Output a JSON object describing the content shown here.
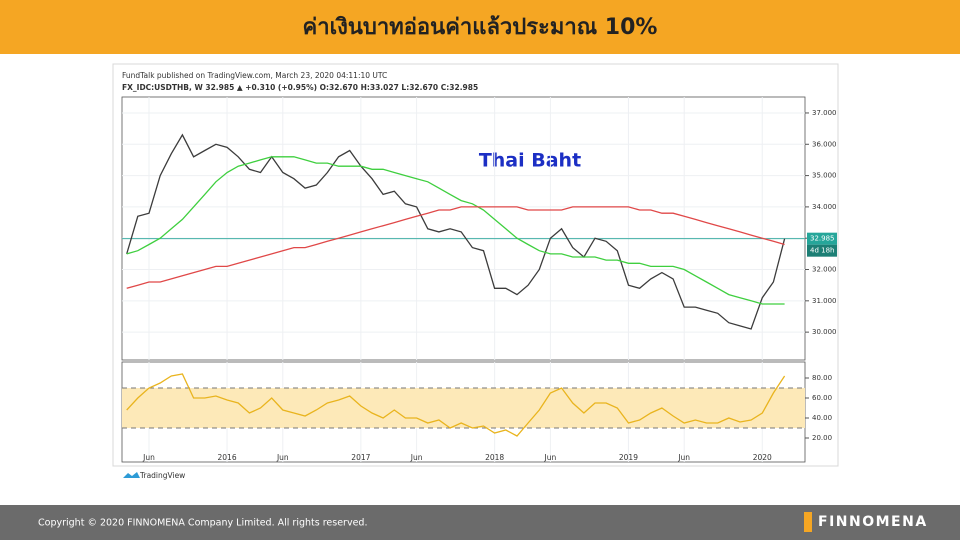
{
  "slide": {
    "title": "ค่าเงินบาทอ่อนค่าแล้วประมาณ 10%",
    "footer": "Copyright © 2020 FINNOMENA Company Limited. All rights reserved.",
    "logo": "FINNOMENA"
  },
  "chart_data": [
    {
      "type": "line",
      "publisher_line": "FundTalk published on TradingView.com, March 23, 2020 04:11:10 UTC",
      "symbol_line": "FX_IDC:USDTHB, W 32.985 ▲ +0.310 (+0.95%) O:32.670 H:33.027 L:32.670 C:32.985",
      "annotation": "Thai Baht",
      "watermark": "TradingView",
      "ylim": [
        29.11,
        37.51
      ],
      "yticks": [
        {
          "value": 30,
          "label": "30.000"
        },
        {
          "value": 31,
          "label": "31.000"
        },
        {
          "value": 32,
          "label": "32.000"
        },
        {
          "value": 33,
          "label": "33.000"
        },
        {
          "value": 34,
          "label": "34.000"
        },
        {
          "value": 35,
          "label": "35.000"
        },
        {
          "value": 36,
          "label": "36.000"
        },
        {
          "value": 37,
          "label": "37.000"
        }
      ],
      "grid": true,
      "price_line": 32.985,
      "price_line_color": "#26a69a",
      "countdown": "4d 18h",
      "series": [
        {
          "color": "#3c3c3c",
          "values": [
            32.5,
            33.7,
            33.8,
            35.0,
            35.7,
            36.3,
            35.6,
            35.8,
            36.0,
            35.9,
            35.6,
            35.2,
            35.1,
            35.6,
            35.1,
            34.9,
            34.6,
            34.7,
            35.1,
            35.6,
            35.8,
            35.3,
            34.9,
            34.4,
            34.5,
            34.1,
            34.0,
            33.3,
            33.2,
            33.3,
            33.2,
            32.7,
            32.6,
            31.4,
            31.4,
            31.2,
            31.5,
            32.0,
            33.0,
            33.3,
            32.7,
            32.4,
            33.0,
            32.9,
            32.6,
            31.5,
            31.4,
            31.7,
            31.9,
            31.7,
            30.8,
            30.8,
            30.7,
            30.6,
            30.3,
            30.2,
            30.1,
            31.1,
            31.6,
            32.985
          ]
        },
        {
          "color": "#3fcf3f",
          "values": [
            32.5,
            32.6,
            32.8,
            33.0,
            33.3,
            33.6,
            34.0,
            34.4,
            34.8,
            35.1,
            35.3,
            35.4,
            35.5,
            35.6,
            35.6,
            35.6,
            35.5,
            35.4,
            35.4,
            35.3,
            35.3,
            35.3,
            35.2,
            35.2,
            35.1,
            35.0,
            34.9,
            34.8,
            34.6,
            34.4,
            34.2,
            34.1,
            33.9,
            33.6,
            33.3,
            33.0,
            32.8,
            32.6,
            32.5,
            32.5,
            32.4,
            32.4,
            32.4,
            32.3,
            32.3,
            32.2,
            32.2,
            32.1,
            32.1,
            32.1,
            32.0,
            31.8,
            31.6,
            31.4,
            31.2,
            31.1,
            31.0,
            30.9,
            30.9,
            30.9
          ]
        },
        {
          "color": "#e04848",
          "values": [
            31.4,
            31.5,
            31.6,
            31.6,
            31.7,
            31.8,
            31.9,
            32.0,
            32.1,
            32.1,
            32.2,
            32.3,
            32.4,
            32.5,
            32.6,
            32.7,
            32.7,
            32.8,
            32.9,
            33.0,
            33.1,
            33.2,
            33.3,
            33.4,
            33.5,
            33.6,
            33.7,
            33.8,
            33.9,
            33.9,
            34.0,
            34.0,
            34.0,
            34.0,
            34.0,
            34.0,
            33.9,
            33.9,
            33.9,
            33.9,
            34.0,
            34.0,
            34.0,
            34.0,
            34.0,
            34.0,
            33.9,
            33.9,
            33.8,
            33.8,
            33.7,
            33.6,
            33.5,
            33.4,
            33.3,
            33.2,
            33.1,
            33.0,
            32.9,
            32.8
          ]
        }
      ]
    },
    {
      "type": "line",
      "categories": [
        null,
        null,
        "Jun",
        null,
        null,
        null,
        null,
        null,
        null,
        "2016",
        null,
        null,
        null,
        null,
        "Jun",
        null,
        null,
        null,
        null,
        null,
        null,
        "2017",
        null,
        null,
        null,
        null,
        "Jun",
        null,
        null,
        null,
        null,
        null,
        null,
        "2018",
        null,
        null,
        null,
        null,
        "Jun",
        null,
        null,
        null,
        null,
        null,
        null,
        "2019",
        null,
        null,
        null,
        null,
        "Jun",
        null,
        null,
        null,
        null,
        null,
        null,
        "2020",
        null,
        null
      ],
      "ylim": [
        -4,
        96
      ],
      "yticks": [
        {
          "value": 20,
          "label": "20.00"
        },
        {
          "value": 40,
          "label": "40.00"
        },
        {
          "value": 60,
          "label": "60.00"
        },
        {
          "value": 80,
          "label": "80.00"
        }
      ],
      "band": [
        30,
        70
      ],
      "band_color": "#fde9b8",
      "series": [
        {
          "color": "#e9b41e",
          "values": [
            48,
            60,
            70,
            75,
            82,
            84,
            60,
            60,
            62,
            58,
            55,
            45,
            50,
            60,
            48,
            45,
            42,
            48,
            55,
            58,
            62,
            52,
            45,
            40,
            48,
            40,
            40,
            35,
            38,
            30,
            35,
            30,
            32,
            25,
            28,
            22,
            35,
            48,
            65,
            70,
            55,
            45,
            55,
            55,
            50,
            35,
            38,
            45,
            50,
            42,
            35,
            38,
            35,
            35,
            40,
            36,
            38,
            45,
            65,
            82
          ]
        }
      ]
    }
  ]
}
